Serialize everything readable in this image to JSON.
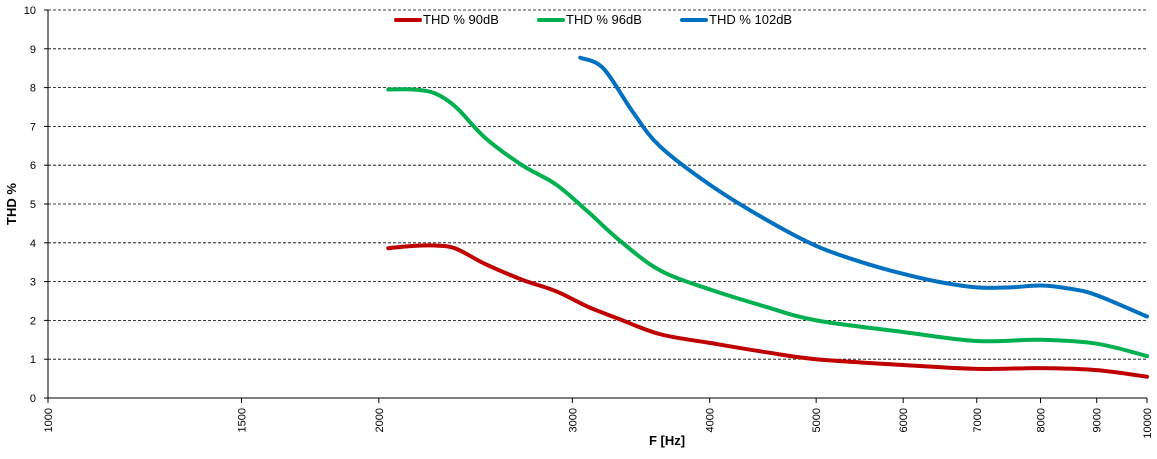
{
  "chart_data": {
    "type": "line",
    "title": "",
    "xlabel": "F [Hz]",
    "ylabel": "THD %",
    "x_scale": "log",
    "xlim": [
      1000,
      10000
    ],
    "ylim": [
      0,
      10
    ],
    "x_ticks": [
      1000,
      1500,
      2000,
      3000,
      4000,
      5000,
      6000,
      7000,
      8000,
      9000,
      10000
    ],
    "y_ticks": [
      0,
      1,
      2,
      3,
      4,
      5,
      6,
      7,
      8,
      9,
      10
    ],
    "grid": "horizontal dashed",
    "legend_position": "top",
    "series": [
      {
        "name": "THD % 90dB",
        "color": "#C00000",
        "x": [
          2040,
          2150,
          2250,
          2350,
          2500,
          2700,
          2900,
          3100,
          3300,
          3600,
          4000,
          4500,
          5000,
          6000,
          7000,
          8000,
          9000,
          10000
        ],
        "y": [
          3.86,
          3.92,
          3.93,
          3.85,
          3.45,
          3.05,
          2.75,
          2.35,
          2.05,
          1.65,
          1.42,
          1.18,
          1.0,
          0.85,
          0.75,
          0.77,
          0.72,
          0.55
        ]
      },
      {
        "name": "THD % 96dB",
        "color": "#00B050",
        "x": [
          2040,
          2150,
          2250,
          2350,
          2500,
          2700,
          2900,
          3100,
          3300,
          3600,
          4000,
          4500,
          5000,
          6000,
          7000,
          8000,
          9000,
          10000
        ],
        "y": [
          7.95,
          7.95,
          7.85,
          7.5,
          6.7,
          6.0,
          5.5,
          4.8,
          4.1,
          3.3,
          2.8,
          2.35,
          2.0,
          1.7,
          1.47,
          1.5,
          1.4,
          1.08
        ]
      },
      {
        "name": "THD % 102dB",
        "color": "#0070C0",
        "x": [
          3050,
          3200,
          3400,
          3600,
          4000,
          4500,
          5000,
          5500,
          6000,
          6500,
          7000,
          7500,
          8000,
          8500,
          9000,
          10000
        ],
        "y": [
          8.77,
          8.5,
          7.4,
          6.5,
          5.5,
          4.6,
          3.92,
          3.5,
          3.2,
          2.98,
          2.85,
          2.85,
          2.9,
          2.82,
          2.65,
          2.1
        ]
      }
    ]
  }
}
